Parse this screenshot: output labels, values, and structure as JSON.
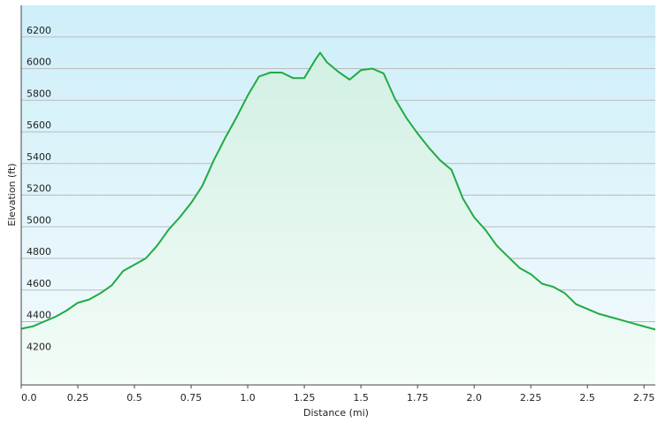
{
  "chart_data": {
    "type": "area",
    "xlabel": "Distance  (mi)",
    "ylabel": "Elevation (ft)",
    "xlim": [
      0,
      2.8
    ],
    "ylim": [
      4000,
      6400
    ],
    "x_ticks": [
      "0.0",
      "0.25",
      "0.5",
      "0.75",
      "1.0",
      "1.25",
      "1.5",
      "1.75",
      "2.0",
      "2.25",
      "2.5",
      "2.75"
    ],
    "y_ticks": [
      "4200",
      "4400",
      "4600",
      "4800",
      "5000",
      "5200",
      "5400",
      "5600",
      "5800",
      "6000",
      "6200"
    ],
    "grid": "horizontal",
    "colors": {
      "line": "#22aa44",
      "fill_top": "#d2f0e4",
      "fill_bottom": "#f3fcf7",
      "bg_top": "#cdeef9",
      "bg_bottom": "#f4fbfd",
      "grid": "#bbbbbb"
    },
    "series": [
      {
        "x": [
          0,
          0.05,
          0.1,
          0.15,
          0.2,
          0.25,
          0.3,
          0.35,
          0.4,
          0.45,
          0.5,
          0.55,
          0.6,
          0.65,
          0.7,
          0.75,
          0.8,
          0.85,
          0.9,
          0.95,
          1.0,
          1.05,
          1.1,
          1.15,
          1.2,
          1.25,
          1.3,
          1.32,
          1.35,
          1.4,
          1.45,
          1.5,
          1.55,
          1.6,
          1.65,
          1.7,
          1.75,
          1.8,
          1.85,
          1.9,
          1.95,
          2.0,
          2.05,
          2.1,
          2.15,
          2.2,
          2.25,
          2.3,
          2.35,
          2.4,
          2.45,
          2.5,
          2.55,
          2.6,
          2.65,
          2.7,
          2.75,
          2.8
        ],
        "y": [
          4355,
          4370,
          4400,
          4430,
          4470,
          4520,
          4540,
          4580,
          4630,
          4720,
          4760,
          4800,
          4880,
          4980,
          5060,
          5150,
          5260,
          5420,
          5560,
          5690,
          5830,
          5950,
          5975,
          5975,
          5940,
          5940,
          6060,
          6100,
          6040,
          5980,
          5930,
          5990,
          6000,
          5970,
          5810,
          5690,
          5590,
          5500,
          5420,
          5360,
          5180,
          5060,
          4980,
          4880,
          4810,
          4740,
          4700,
          4640,
          4620,
          4580,
          4510,
          4480,
          4450,
          4430,
          4410,
          4390,
          4370,
          4350
        ]
      }
    ]
  }
}
